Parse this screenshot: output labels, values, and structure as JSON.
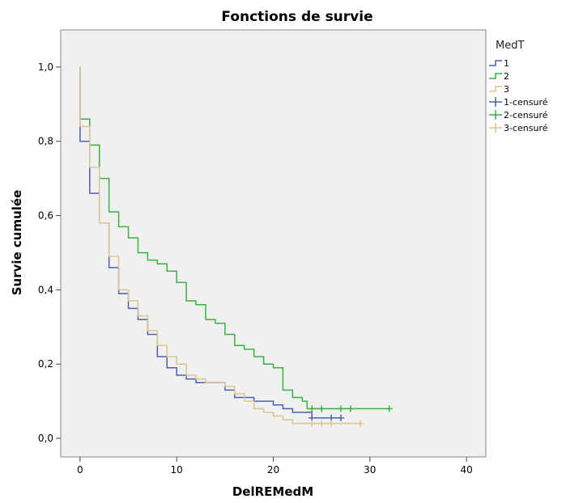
{
  "chart_data": {
    "type": "line",
    "title": "Fonctions de survie",
    "xlabel": "DelREMedM",
    "ylabel": "Survie cumulée",
    "xlim": [
      -2,
      42
    ],
    "ylim": [
      -0.05,
      1.1
    ],
    "x_ticks": [
      0,
      10,
      20,
      30,
      40
    ],
    "x_tick_labels": [
      "0",
      "10",
      "20",
      "30",
      "40"
    ],
    "y_ticks": [
      0.0,
      0.2,
      0.4,
      0.6,
      0.8,
      1.0
    ],
    "y_tick_labels": [
      "0,0",
      "0,2",
      "0,4",
      "0,6",
      "0,8",
      "1,0"
    ],
    "grid": false,
    "legend_title": "MedT",
    "legend_position": "right",
    "series": [
      {
        "name": "1",
        "color": "#4c5fb1",
        "step": true,
        "points": [
          [
            0,
            1.0
          ],
          [
            0,
            0.8
          ],
          [
            1,
            0.66
          ],
          [
            2,
            0.58
          ],
          [
            3,
            0.46
          ],
          [
            4,
            0.39
          ],
          [
            5,
            0.35
          ],
          [
            6,
            0.32
          ],
          [
            7,
            0.28
          ],
          [
            8,
            0.22
          ],
          [
            9,
            0.19
          ],
          [
            10,
            0.17
          ],
          [
            11,
            0.16
          ],
          [
            12,
            0.15
          ],
          [
            15,
            0.13
          ],
          [
            16,
            0.11
          ],
          [
            18,
            0.1
          ],
          [
            20,
            0.09
          ],
          [
            21,
            0.08
          ],
          [
            22,
            0.07
          ],
          [
            24,
            0.055
          ],
          [
            27.2,
            0.055
          ]
        ],
        "censored": [
          [
            24,
            0.055
          ],
          [
            26,
            0.055
          ],
          [
            27,
            0.055
          ]
        ]
      },
      {
        "name": "2",
        "color": "#3cb043",
        "step": true,
        "points": [
          [
            0,
            1.0
          ],
          [
            0,
            0.86
          ],
          [
            1,
            0.79
          ],
          [
            2,
            0.7
          ],
          [
            3,
            0.61
          ],
          [
            4,
            0.57
          ],
          [
            5,
            0.54
          ],
          [
            6,
            0.5
          ],
          [
            7,
            0.48
          ],
          [
            8,
            0.47
          ],
          [
            9,
            0.45
          ],
          [
            10,
            0.42
          ],
          [
            11,
            0.37
          ],
          [
            12,
            0.36
          ],
          [
            13,
            0.32
          ],
          [
            14,
            0.31
          ],
          [
            15,
            0.28
          ],
          [
            16,
            0.25
          ],
          [
            17,
            0.24
          ],
          [
            18,
            0.22
          ],
          [
            19,
            0.2
          ],
          [
            20,
            0.19
          ],
          [
            21,
            0.13
          ],
          [
            22,
            0.11
          ],
          [
            23,
            0.1
          ],
          [
            23.5,
            0.08
          ],
          [
            32,
            0.08
          ]
        ],
        "censored": [
          [
            24,
            0.08
          ],
          [
            25,
            0.08
          ],
          [
            27,
            0.08
          ],
          [
            28,
            0.08
          ],
          [
            32,
            0.08
          ]
        ]
      },
      {
        "name": "3",
        "color": "#dcc48e",
        "step": true,
        "points": [
          [
            0,
            1.0
          ],
          [
            0,
            0.84
          ],
          [
            1,
            0.73
          ],
          [
            2,
            0.58
          ],
          [
            3,
            0.49
          ],
          [
            4,
            0.4
          ],
          [
            5,
            0.37
          ],
          [
            6,
            0.33
          ],
          [
            7,
            0.29
          ],
          [
            8,
            0.25
          ],
          [
            9,
            0.22
          ],
          [
            10,
            0.2
          ],
          [
            11,
            0.17
          ],
          [
            12,
            0.16
          ],
          [
            13,
            0.15
          ],
          [
            15,
            0.14
          ],
          [
            16,
            0.12
          ],
          [
            17,
            0.1
          ],
          [
            18,
            0.08
          ],
          [
            19,
            0.07
          ],
          [
            20,
            0.06
          ],
          [
            21,
            0.05
          ],
          [
            22,
            0.04
          ],
          [
            29,
            0.04
          ]
        ],
        "censored": [
          [
            24,
            0.04
          ],
          [
            25,
            0.04
          ],
          [
            26,
            0.04
          ],
          [
            29,
            0.04
          ]
        ]
      }
    ],
    "legend_entries": [
      {
        "label": "1",
        "series": 0,
        "kind": "line"
      },
      {
        "label": "2",
        "series": 1,
        "kind": "line"
      },
      {
        "label": "3",
        "series": 2,
        "kind": "line"
      },
      {
        "label": "1-censuré",
        "series": 0,
        "kind": "cross"
      },
      {
        "label": "2-censuré",
        "series": 1,
        "kind": "cross"
      },
      {
        "label": "3-censuré",
        "series": 2,
        "kind": "cross"
      }
    ]
  }
}
